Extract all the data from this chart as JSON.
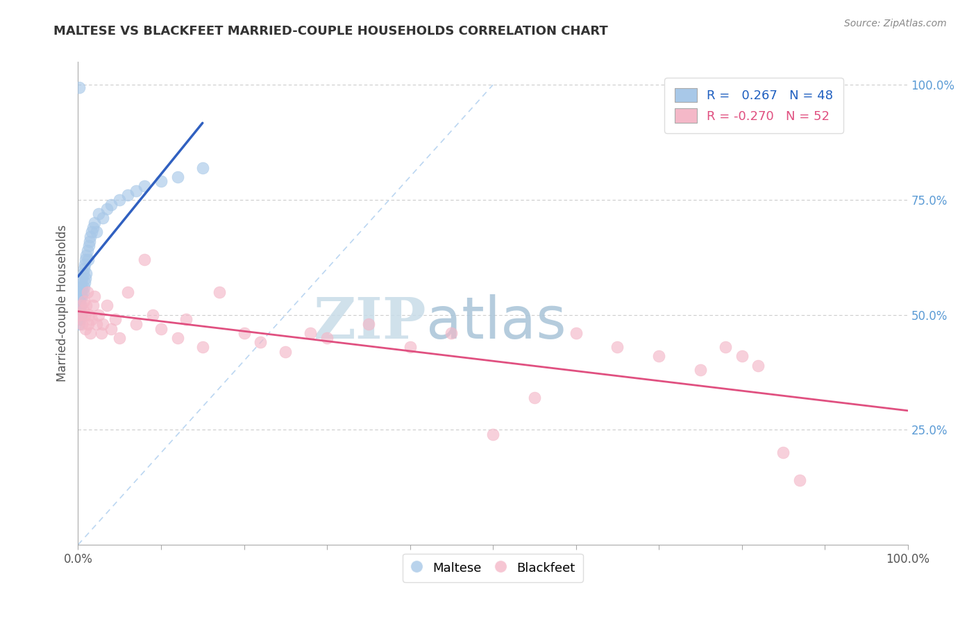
{
  "title": "MALTESE VS BLACKFEET MARRIED-COUPLE HOUSEHOLDS CORRELATION CHART",
  "source": "Source: ZipAtlas.com",
  "ylabel": "Married-couple Households",
  "blue_label": "Maltese",
  "pink_label": "Blackfeet",
  "blue_R": " 0.267",
  "blue_N": "48",
  "pink_R": "-0.270",
  "pink_N": "52",
  "blue_color": "#a8c8e8",
  "pink_color": "#f4b8c8",
  "blue_line_color": "#3060c0",
  "pink_line_color": "#e05080",
  "diag_color": "#aaccee",
  "background_color": "#ffffff",
  "grid_color": "#cccccc",
  "watermark_zip": "ZIP",
  "watermark_atlas": "atlas",
  "watermark_color_zip": "#c8dce8",
  "watermark_color_atlas": "#a0bcd0",
  "maltese_x": [
    0.001,
    0.001,
    0.001,
    0.001,
    0.002,
    0.002,
    0.002,
    0.002,
    0.003,
    0.003,
    0.003,
    0.004,
    0.004,
    0.004,
    0.005,
    0.005,
    0.005,
    0.006,
    0.006,
    0.007,
    0.007,
    0.008,
    0.008,
    0.009,
    0.009,
    0.01,
    0.01,
    0.011,
    0.012,
    0.013,
    0.014,
    0.015,
    0.016,
    0.018,
    0.02,
    0.022,
    0.025,
    0.03,
    0.035,
    0.04,
    0.05,
    0.06,
    0.07,
    0.08,
    0.1,
    0.12,
    0.15,
    0.001
  ],
  "maltese_y": [
    0.5,
    0.52,
    0.54,
    0.48,
    0.55,
    0.53,
    0.51,
    0.49,
    0.56,
    0.54,
    0.52,
    0.57,
    0.55,
    0.5,
    0.58,
    0.56,
    0.54,
    0.59,
    0.55,
    0.6,
    0.56,
    0.61,
    0.57,
    0.62,
    0.58,
    0.63,
    0.59,
    0.64,
    0.62,
    0.65,
    0.66,
    0.67,
    0.68,
    0.69,
    0.7,
    0.68,
    0.72,
    0.71,
    0.73,
    0.74,
    0.75,
    0.76,
    0.77,
    0.78,
    0.79,
    0.8,
    0.82,
    0.995
  ],
  "blackfeet_x": [
    0.002,
    0.003,
    0.004,
    0.005,
    0.006,
    0.007,
    0.008,
    0.009,
    0.01,
    0.011,
    0.012,
    0.013,
    0.015,
    0.016,
    0.018,
    0.02,
    0.022,
    0.025,
    0.028,
    0.03,
    0.035,
    0.04,
    0.045,
    0.05,
    0.06,
    0.07,
    0.08,
    0.09,
    0.1,
    0.12,
    0.13,
    0.15,
    0.17,
    0.2,
    0.22,
    0.25,
    0.28,
    0.3,
    0.35,
    0.4,
    0.45,
    0.5,
    0.55,
    0.6,
    0.65,
    0.7,
    0.75,
    0.78,
    0.8,
    0.82,
    0.85,
    0.87
  ],
  "blackfeet_y": [
    0.5,
    0.49,
    0.52,
    0.48,
    0.51,
    0.53,
    0.5,
    0.47,
    0.52,
    0.55,
    0.48,
    0.5,
    0.46,
    0.49,
    0.52,
    0.54,
    0.48,
    0.5,
    0.46,
    0.48,
    0.52,
    0.47,
    0.49,
    0.45,
    0.55,
    0.48,
    0.62,
    0.5,
    0.47,
    0.45,
    0.49,
    0.43,
    0.55,
    0.46,
    0.44,
    0.42,
    0.46,
    0.45,
    0.48,
    0.43,
    0.46,
    0.24,
    0.32,
    0.46,
    0.43,
    0.41,
    0.38,
    0.43,
    0.41,
    0.39,
    0.2,
    0.14
  ],
  "yticks": [
    0.25,
    0.5,
    0.75,
    1.0
  ],
  "ytick_labels": [
    "25.0%",
    "50.0%",
    "75.0%",
    "100.0%"
  ],
  "xticks": [
    0.0,
    0.1,
    0.2,
    0.3,
    0.4,
    0.5,
    0.6,
    0.7,
    0.8,
    0.9,
    1.0
  ],
  "xtick_labels": [
    "0.0%",
    "",
    "",
    "",
    "",
    "",
    "",
    "",
    "",
    "",
    "100.0%"
  ]
}
